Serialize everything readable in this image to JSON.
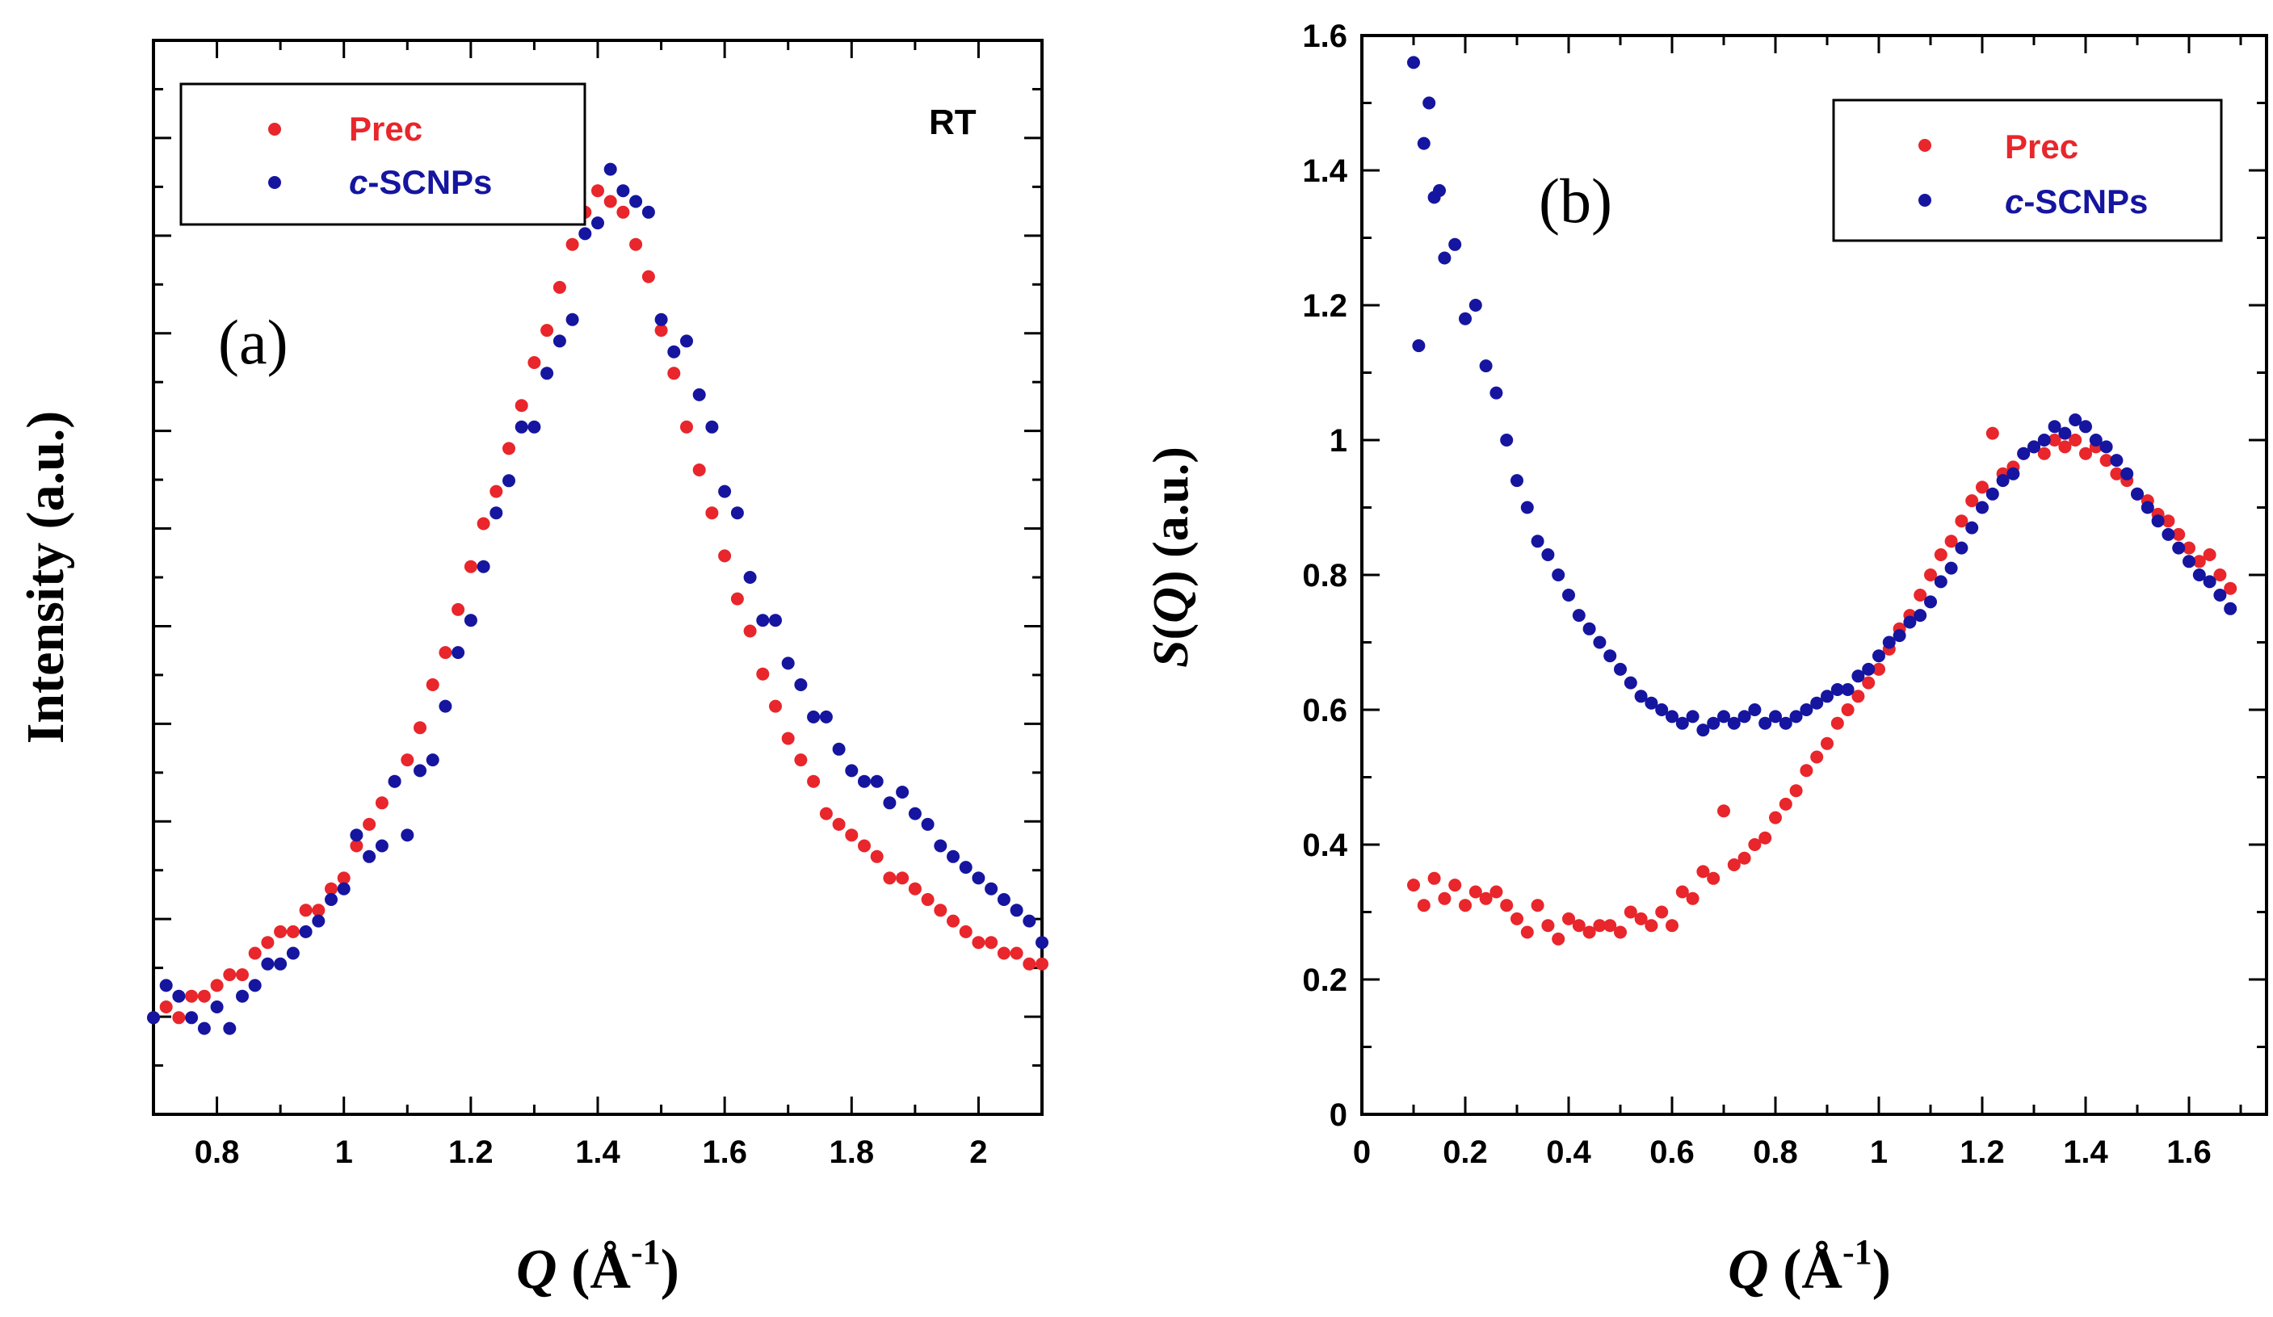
{
  "chart_data": [
    {
      "id": "a",
      "type": "scatter",
      "panel_label": "(a)",
      "annotation": "RT",
      "xlabel_var": "Q",
      "xlabel_unit_open": " (Å",
      "xlabel_unit_sup": "-1",
      "xlabel_unit_close": ")",
      "ylabel": "Intensity (a.u.)",
      "xlim": [
        0.7,
        2.1
      ],
      "ylim": [
        0.0,
        1.0
      ],
      "xticks": [
        "0.8",
        "1",
        "1.2",
        "1.4",
        "1.6",
        "1.8",
        "2"
      ],
      "xtick_values": [
        0.8,
        1.0,
        1.2,
        1.4,
        1.6,
        1.8,
        2.0
      ],
      "yticks_labeled": false,
      "legend": {
        "position": "top-left"
      },
      "series": [
        {
          "name": "Prec",
          "color": "#e8262b",
          "x": [
            0.7,
            0.72,
            0.74,
            0.76,
            0.78,
            0.8,
            0.82,
            0.84,
            0.86,
            0.88,
            0.9,
            0.92,
            0.94,
            0.96,
            0.98,
            1.0,
            1.02,
            1.04,
            1.06,
            1.08,
            1.1,
            1.12,
            1.14,
            1.16,
            1.18,
            1.2,
            1.22,
            1.24,
            1.26,
            1.28,
            1.3,
            1.32,
            1.34,
            1.36,
            1.38,
            1.4,
            1.42,
            1.44,
            1.46,
            1.48,
            1.5,
            1.52,
            1.54,
            1.56,
            1.58,
            1.6,
            1.62,
            1.64,
            1.66,
            1.68,
            1.7,
            1.72,
            1.74,
            1.76,
            1.78,
            1.8,
            1.82,
            1.84,
            1.86,
            1.88,
            1.9,
            1.92,
            1.94,
            1.96,
            1.98,
            2.0,
            2.02,
            2.04,
            2.06,
            2.08,
            2.1
          ],
          "values": [
            0.09,
            0.1,
            0.09,
            0.11,
            0.11,
            0.12,
            0.13,
            0.13,
            0.15,
            0.16,
            0.17,
            0.17,
            0.19,
            0.19,
            0.21,
            0.22,
            0.25,
            0.27,
            0.29,
            0.31,
            0.33,
            0.36,
            0.4,
            0.43,
            0.47,
            0.51,
            0.55,
            0.58,
            0.62,
            0.66,
            0.7,
            0.73,
            0.77,
            0.81,
            0.84,
            0.86,
            0.85,
            0.84,
            0.81,
            0.78,
            0.73,
            0.69,
            0.64,
            0.6,
            0.56,
            0.52,
            0.48,
            0.45,
            0.41,
            0.38,
            0.35,
            0.33,
            0.31,
            0.28,
            0.27,
            0.26,
            0.25,
            0.24,
            0.22,
            0.22,
            0.21,
            0.2,
            0.19,
            0.18,
            0.17,
            0.16,
            0.16,
            0.15,
            0.15,
            0.14,
            0.14
          ]
        },
        {
          "name": "c-SCNPs",
          "name_italic": "c",
          "name_rest": "-SCNPs",
          "color": "#1515a0",
          "x": [
            0.7,
            0.72,
            0.74,
            0.76,
            0.78,
            0.8,
            0.82,
            0.84,
            0.86,
            0.88,
            0.9,
            0.92,
            0.94,
            0.96,
            0.98,
            1.0,
            1.02,
            1.04,
            1.06,
            1.08,
            1.1,
            1.12,
            1.14,
            1.16,
            1.18,
            1.2,
            1.22,
            1.24,
            1.26,
            1.28,
            1.3,
            1.32,
            1.34,
            1.36,
            1.38,
            1.4,
            1.42,
            1.44,
            1.46,
            1.48,
            1.5,
            1.52,
            1.54,
            1.56,
            1.58,
            1.6,
            1.62,
            1.64,
            1.66,
            1.68,
            1.7,
            1.72,
            1.74,
            1.76,
            1.78,
            1.8,
            1.82,
            1.84,
            1.86,
            1.88,
            1.9,
            1.92,
            1.94,
            1.96,
            1.98,
            2.0,
            2.02,
            2.04,
            2.06,
            2.08,
            2.1
          ],
          "values": [
            0.09,
            0.12,
            0.11,
            0.09,
            0.08,
            0.1,
            0.08,
            0.11,
            0.12,
            0.14,
            0.14,
            0.15,
            0.17,
            0.18,
            0.2,
            0.21,
            0.26,
            0.24,
            0.25,
            0.31,
            0.26,
            0.32,
            0.33,
            0.38,
            0.43,
            0.46,
            0.51,
            0.56,
            0.59,
            0.64,
            0.64,
            0.69,
            0.72,
            0.74,
            0.82,
            0.83,
            0.88,
            0.86,
            0.85,
            0.84,
            0.74,
            0.71,
            0.72,
            0.67,
            0.64,
            0.58,
            0.56,
            0.5,
            0.46,
            0.46,
            0.42,
            0.4,
            0.37,
            0.37,
            0.34,
            0.32,
            0.31,
            0.31,
            0.29,
            0.3,
            0.28,
            0.27,
            0.25,
            0.24,
            0.23,
            0.22,
            0.21,
            0.2,
            0.19,
            0.18,
            0.16
          ]
        }
      ]
    },
    {
      "id": "b",
      "type": "scatter",
      "panel_label": "(b)",
      "xlabel_var": "Q",
      "xlabel_unit_open": " (Å",
      "xlabel_unit_sup": "-1",
      "xlabel_unit_close": ")",
      "ylabel_var_s": "S",
      "ylabel_paren_open": "(",
      "ylabel_var_q": "Q",
      "ylabel_rest": ") (a.u.)",
      "xlim": [
        0.0,
        1.75
      ],
      "ylim": [
        0.0,
        1.6
      ],
      "xticks": [
        "0",
        "0.2",
        "0.4",
        "0.6",
        "0.8",
        "1",
        "1.2",
        "1.4",
        "1.6"
      ],
      "xtick_values": [
        0.0,
        0.2,
        0.4,
        0.6,
        0.8,
        1.0,
        1.2,
        1.4,
        1.6
      ],
      "yticks": [
        "0",
        "0.2",
        "0.4",
        "0.6",
        "0.8",
        "1",
        "1.2",
        "1.4",
        "1.6"
      ],
      "ytick_values": [
        0.0,
        0.2,
        0.4,
        0.6,
        0.8,
        1.0,
        1.2,
        1.4,
        1.6
      ],
      "legend": {
        "position": "top-right"
      },
      "series": [
        {
          "name": "Prec",
          "color": "#e8262b",
          "x": [
            0.1,
            0.12,
            0.14,
            0.16,
            0.18,
            0.2,
            0.22,
            0.24,
            0.26,
            0.28,
            0.3,
            0.32,
            0.34,
            0.36,
            0.38,
            0.4,
            0.42,
            0.44,
            0.46,
            0.48,
            0.5,
            0.52,
            0.54,
            0.56,
            0.58,
            0.6,
            0.62,
            0.64,
            0.66,
            0.68,
            0.7,
            0.72,
            0.74,
            0.76,
            0.78,
            0.8,
            0.82,
            0.84,
            0.86,
            0.88,
            0.9,
            0.92,
            0.94,
            0.96,
            0.98,
            1.0,
            1.02,
            1.04,
            1.06,
            1.08,
            1.1,
            1.12,
            1.14,
            1.16,
            1.18,
            1.2,
            1.22,
            1.24,
            1.26,
            1.28,
            1.3,
            1.32,
            1.34,
            1.36,
            1.38,
            1.4,
            1.42,
            1.44,
            1.46,
            1.48,
            1.5,
            1.52,
            1.54,
            1.56,
            1.58,
            1.6,
            1.62,
            1.64,
            1.66,
            1.68
          ],
          "values": [
            0.34,
            0.31,
            0.35,
            0.32,
            0.34,
            0.31,
            0.33,
            0.32,
            0.33,
            0.31,
            0.29,
            0.27,
            0.31,
            0.28,
            0.26,
            0.29,
            0.28,
            0.27,
            0.28,
            0.28,
            0.27,
            0.3,
            0.29,
            0.28,
            0.3,
            0.28,
            0.33,
            0.32,
            0.36,
            0.35,
            0.45,
            0.37,
            0.38,
            0.4,
            0.41,
            0.44,
            0.46,
            0.48,
            0.51,
            0.53,
            0.55,
            0.58,
            0.6,
            0.62,
            0.64,
            0.66,
            0.69,
            0.72,
            0.74,
            0.77,
            0.8,
            0.83,
            0.85,
            0.88,
            0.91,
            0.93,
            1.01,
            0.95,
            0.96,
            0.98,
            0.99,
            0.98,
            1.0,
            0.99,
            1.0,
            0.98,
            0.99,
            0.97,
            0.95,
            0.94,
            0.92,
            0.91,
            0.89,
            0.88,
            0.86,
            0.84,
            0.82,
            0.83,
            0.8,
            0.78
          ]
        },
        {
          "name": "c-SCNPs",
          "name_italic": "c",
          "name_rest": "-SCNPs",
          "color": "#1515a0",
          "x": [
            0.1,
            0.11,
            0.12,
            0.13,
            0.14,
            0.15,
            0.16,
            0.18,
            0.2,
            0.22,
            0.24,
            0.26,
            0.28,
            0.3,
            0.32,
            0.34,
            0.36,
            0.38,
            0.4,
            0.42,
            0.44,
            0.46,
            0.48,
            0.5,
            0.52,
            0.54,
            0.56,
            0.58,
            0.6,
            0.62,
            0.64,
            0.66,
            0.68,
            0.7,
            0.72,
            0.74,
            0.76,
            0.78,
            0.8,
            0.82,
            0.84,
            0.86,
            0.88,
            0.9,
            0.92,
            0.94,
            0.96,
            0.98,
            1.0,
            1.02,
            1.04,
            1.06,
            1.08,
            1.1,
            1.12,
            1.14,
            1.16,
            1.18,
            1.2,
            1.22,
            1.24,
            1.26,
            1.28,
            1.3,
            1.32,
            1.34,
            1.36,
            1.38,
            1.4,
            1.42,
            1.44,
            1.46,
            1.48,
            1.5,
            1.52,
            1.54,
            1.56,
            1.58,
            1.6,
            1.62,
            1.64,
            1.66,
            1.68
          ],
          "values": [
            1.56,
            1.14,
            1.44,
            1.5,
            1.36,
            1.37,
            1.27,
            1.29,
            1.18,
            1.2,
            1.11,
            1.07,
            1.0,
            0.94,
            0.9,
            0.85,
            0.83,
            0.8,
            0.77,
            0.74,
            0.72,
            0.7,
            0.68,
            0.66,
            0.64,
            0.62,
            0.61,
            0.6,
            0.59,
            0.58,
            0.59,
            0.57,
            0.58,
            0.59,
            0.58,
            0.59,
            0.6,
            0.58,
            0.59,
            0.58,
            0.59,
            0.6,
            0.61,
            0.62,
            0.63,
            0.63,
            0.65,
            0.66,
            0.68,
            0.7,
            0.71,
            0.73,
            0.74,
            0.76,
            0.79,
            0.81,
            0.84,
            0.87,
            0.9,
            0.92,
            0.94,
            0.95,
            0.98,
            0.99,
            1.0,
            1.02,
            1.01,
            1.03,
            1.02,
            1.0,
            0.99,
            0.97,
            0.95,
            0.92,
            0.9,
            0.88,
            0.86,
            0.84,
            0.82,
            0.8,
            0.79,
            0.77,
            0.75
          ]
        }
      ]
    }
  ]
}
